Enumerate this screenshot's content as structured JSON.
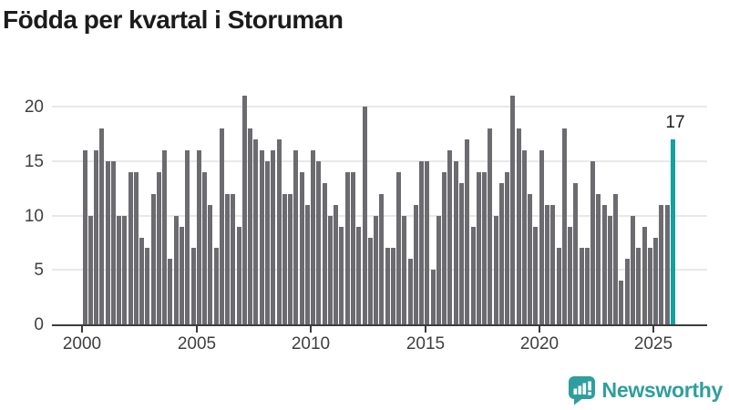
{
  "title": "Födda per kvartal i Storuman",
  "annotation": {
    "label": "17"
  },
  "logo": {
    "text": "Newsworthy",
    "icon": "newsworthy-bubble-chart-icon",
    "color": "#2f9e9e"
  },
  "colors": {
    "bar": "#6b6b70",
    "highlight_bar": "#12a0a1",
    "grid": "#e8e8e8",
    "axis": "#3c3c3c",
    "tick_text": "#3f3f3f",
    "title_text": "#1c1c1c"
  },
  "chart_data": {
    "type": "bar",
    "title": "Födda per kvartal i Storuman",
    "frequency": "quarterly",
    "x_start": {
      "year": 2000,
      "quarter": 1
    },
    "x_end": {
      "year": 2025,
      "quarter": 4
    },
    "values": [
      16,
      10,
      16,
      18,
      15,
      15,
      10,
      10,
      14,
      14,
      8,
      7,
      12,
      14,
      16,
      6,
      10,
      9,
      16,
      7,
      16,
      14,
      11,
      7,
      18,
      12,
      12,
      9,
      21,
      18,
      17,
      16,
      15,
      16,
      17,
      12,
      12,
      16,
      14,
      11,
      16,
      15,
      13,
      10,
      11,
      9,
      14,
      14,
      9,
      20,
      8,
      10,
      12,
      7,
      7,
      14,
      10,
      6,
      11,
      15,
      15,
      5,
      10,
      14,
      16,
      15,
      13,
      17,
      9,
      14,
      14,
      18,
      10,
      13,
      14,
      21,
      18,
      16,
      12,
      9,
      16,
      11,
      11,
      7,
      18,
      9,
      13,
      7,
      7,
      15,
      12,
      11,
      10,
      12,
      4,
      6,
      10,
      7,
      9,
      7,
      8,
      11,
      11,
      17
    ],
    "highlight_last_bar": true,
    "highlight_value_label": "17",
    "y_ticks": [
      0,
      5,
      10,
      15,
      20
    ],
    "x_tick_labels": [
      "2000",
      "2005",
      "2010",
      "2015",
      "2020",
      "2025"
    ],
    "ylim": [
      0,
      21.5
    ],
    "grid": "horizontal",
    "legend": "none"
  }
}
